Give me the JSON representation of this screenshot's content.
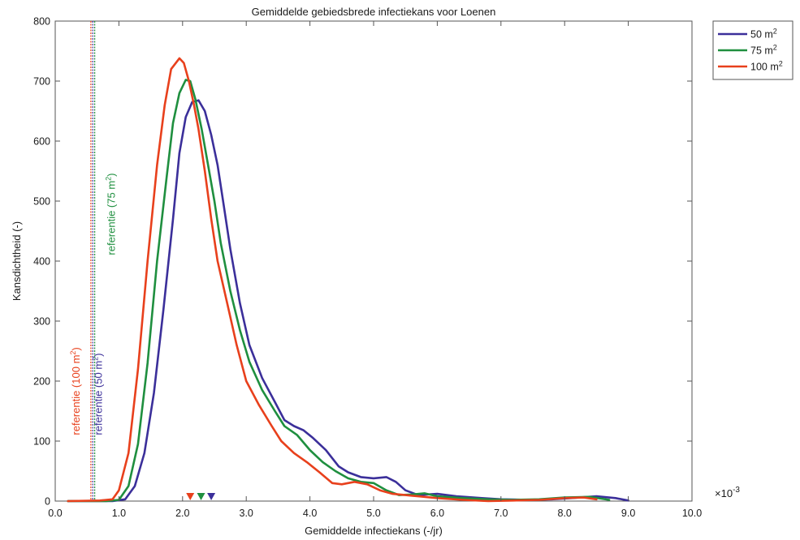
{
  "chart_data": {
    "type": "line",
    "title": "Gemiddelde gebiedsbrede infectiekans voor Loenen",
    "xlabel": "Gemiddelde infectiekans (-/jr)",
    "ylabel": "Kansdichtheid (-)",
    "x_multiplier": "×10",
    "x_multiplier_exp": "-3",
    "xlim": [
      0,
      10
    ],
    "ylim": [
      0,
      800
    ],
    "xticks": [
      0,
      1,
      2,
      3,
      4,
      5,
      6,
      7,
      8,
      9,
      10
    ],
    "xtick_labels": [
      "0.0",
      "1.0",
      "2.0",
      "3.0",
      "4.0",
      "5.0",
      "6.0",
      "7.0",
      "8.0",
      "9.0",
      "10.0"
    ],
    "yticks": [
      0,
      100,
      200,
      300,
      400,
      500,
      600,
      700,
      800
    ],
    "ytick_labels": [
      "0",
      "100",
      "200",
      "300",
      "400",
      "500",
      "600",
      "700",
      "800"
    ],
    "grid": false,
    "legend_position": "outside-top-right",
    "series": [
      {
        "name": "50 m",
        "sup": "2",
        "color": "#3b2f9a",
        "points": [
          [
            0.2,
            0
          ],
          [
            0.9,
            0
          ],
          [
            1.1,
            3
          ],
          [
            1.25,
            25
          ],
          [
            1.4,
            80
          ],
          [
            1.55,
            180
          ],
          [
            1.7,
            320
          ],
          [
            1.85,
            470
          ],
          [
            1.95,
            580
          ],
          [
            2.05,
            640
          ],
          [
            2.15,
            665
          ],
          [
            2.25,
            668
          ],
          [
            2.35,
            650
          ],
          [
            2.45,
            610
          ],
          [
            2.55,
            560
          ],
          [
            2.65,
            490
          ],
          [
            2.75,
            420
          ],
          [
            2.9,
            330
          ],
          [
            3.05,
            260
          ],
          [
            3.25,
            205
          ],
          [
            3.45,
            165
          ],
          [
            3.6,
            135
          ],
          [
            3.75,
            125
          ],
          [
            3.9,
            118
          ],
          [
            4.05,
            105
          ],
          [
            4.25,
            85
          ],
          [
            4.45,
            58
          ],
          [
            4.6,
            48
          ],
          [
            4.8,
            40
          ],
          [
            5.0,
            38
          ],
          [
            5.2,
            40
          ],
          [
            5.35,
            32
          ],
          [
            5.5,
            18
          ],
          [
            5.7,
            10
          ],
          [
            6.0,
            12
          ],
          [
            6.3,
            8
          ],
          [
            6.7,
            5
          ],
          [
            7.0,
            3
          ],
          [
            7.5,
            2
          ],
          [
            7.8,
            3
          ],
          [
            8.1,
            5
          ],
          [
            8.5,
            8
          ],
          [
            8.8,
            5
          ],
          [
            9.0,
            1
          ]
        ]
      },
      {
        "name": "75 m",
        "sup": "2",
        "color": "#1f8f3f",
        "points": [
          [
            0.2,
            0
          ],
          [
            0.8,
            0
          ],
          [
            1.0,
            2
          ],
          [
            1.15,
            25
          ],
          [
            1.3,
            95
          ],
          [
            1.45,
            230
          ],
          [
            1.6,
            400
          ],
          [
            1.75,
            540
          ],
          [
            1.85,
            630
          ],
          [
            1.95,
            680
          ],
          [
            2.05,
            702
          ],
          [
            2.12,
            700
          ],
          [
            2.2,
            670
          ],
          [
            2.3,
            620
          ],
          [
            2.4,
            560
          ],
          [
            2.5,
            500
          ],
          [
            2.6,
            430
          ],
          [
            2.75,
            350
          ],
          [
            2.9,
            285
          ],
          [
            3.05,
            232
          ],
          [
            3.25,
            185
          ],
          [
            3.45,
            150
          ],
          [
            3.6,
            125
          ],
          [
            3.8,
            110
          ],
          [
            4.0,
            85
          ],
          [
            4.2,
            65
          ],
          [
            4.4,
            50
          ],
          [
            4.6,
            38
          ],
          [
            4.8,
            32
          ],
          [
            5.0,
            30
          ],
          [
            5.2,
            18
          ],
          [
            5.4,
            10
          ],
          [
            5.6,
            11
          ],
          [
            5.8,
            13
          ],
          [
            6.0,
            8
          ],
          [
            6.4,
            5
          ],
          [
            6.8,
            3
          ],
          [
            7.2,
            2
          ],
          [
            7.6,
            3
          ],
          [
            8.0,
            6
          ],
          [
            8.4,
            7
          ],
          [
            8.7,
            2
          ]
        ]
      },
      {
        "name": "100 m",
        "sup": "2",
        "color": "#e8401c",
        "points": [
          [
            0.2,
            0
          ],
          [
            0.7,
            1
          ],
          [
            0.9,
            3
          ],
          [
            1.0,
            18
          ],
          [
            1.15,
            80
          ],
          [
            1.3,
            220
          ],
          [
            1.45,
            400
          ],
          [
            1.6,
            560
          ],
          [
            1.72,
            660
          ],
          [
            1.82,
            720
          ],
          [
            1.95,
            738
          ],
          [
            2.02,
            730
          ],
          [
            2.1,
            700
          ],
          [
            2.18,
            660
          ],
          [
            2.25,
            620
          ],
          [
            2.35,
            550
          ],
          [
            2.45,
            470
          ],
          [
            2.55,
            400
          ],
          [
            2.7,
            330
          ],
          [
            2.85,
            260
          ],
          [
            3.0,
            200
          ],
          [
            3.2,
            160
          ],
          [
            3.4,
            125
          ],
          [
            3.55,
            100
          ],
          [
            3.75,
            80
          ],
          [
            3.95,
            65
          ],
          [
            4.15,
            48
          ],
          [
            4.35,
            30
          ],
          [
            4.5,
            28
          ],
          [
            4.7,
            32
          ],
          [
            4.9,
            28
          ],
          [
            5.1,
            18
          ],
          [
            5.3,
            12
          ],
          [
            5.5,
            10
          ],
          [
            5.7,
            8
          ],
          [
            6.0,
            5
          ],
          [
            6.4,
            2
          ],
          [
            6.8,
            0
          ],
          [
            7.2,
            1
          ],
          [
            7.6,
            2
          ],
          [
            8.0,
            5
          ],
          [
            8.3,
            6
          ],
          [
            8.5,
            3
          ]
        ]
      }
    ],
    "reference_lines": [
      {
        "x": 0.56,
        "color": "#e8401c",
        "label": "referentie (100 m",
        "sup": "2",
        "label_y": 110
      },
      {
        "x": 0.59,
        "color": "#3b2f9a",
        "label": "referentie (50 m",
        "sup": "2",
        "label_y": 110
      },
      {
        "x": 0.62,
        "color": "#1f8f3f",
        "label": "referentie (75 m",
        "sup": "2",
        "label_y": 410
      }
    ],
    "markers": [
      {
        "x": 2.12,
        "color": "#e8401c"
      },
      {
        "x": 2.29,
        "color": "#1f8f3f"
      },
      {
        "x": 2.45,
        "color": "#3b2f9a"
      }
    ]
  }
}
